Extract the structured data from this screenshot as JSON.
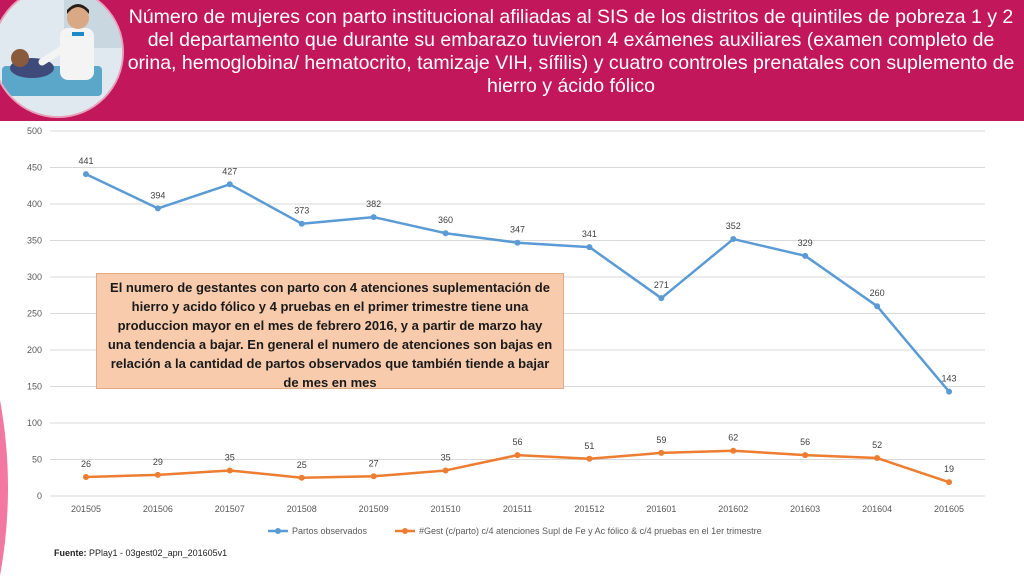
{
  "header": {
    "title": "Número de mujeres con parto institucional afiliadas al SIS de los distritos de quintiles de pobreza 1 y 2 del departamento que durante su embarazo tuvieron 4 exámenes auxiliares (examen completo de orina, hemoglobina/ hematocrito, tamizaje VIH, sífilis) y cuatro controles prenatales con suplemento de hierro y ácido fólico"
  },
  "annotation": {
    "text": "El numero de gestantes con parto con 4 atenciones suplementación de hierro y acido fólico y 4 pruebas en el primer trimestre tiene una produccion mayor en el mes de febrero 2016, y a partir de marzo hay una tendencia a bajar. En general el numero de atenciones son bajas en relación a la cantidad de partos observados que también tiende a bajar de mes en mes"
  },
  "footer": {
    "label": "Fuente:",
    "text": "PPlay1 - 03gest02_apn_201605v1"
  },
  "colors": {
    "header_bg": "#c2185b",
    "series_blue": "#5b9bd5",
    "series_orange": "#ed7d31",
    "annotation_bg": "#f8cbad"
  },
  "chart_data": {
    "type": "line",
    "title": "",
    "xlabel": "",
    "ylabel": "",
    "categories": [
      "201505",
      "201506",
      "201507",
      "201508",
      "201509",
      "201510",
      "201511",
      "201512",
      "201601",
      "201602",
      "201603",
      "201604",
      "201605"
    ],
    "ylim": [
      0,
      500
    ],
    "yticks": [
      0,
      50,
      100,
      150,
      200,
      250,
      300,
      350,
      400,
      450,
      500
    ],
    "grid": true,
    "legend_position": "bottom",
    "series": [
      {
        "name": "Partos observados",
        "color": "#5b9bd5",
        "values": [
          441,
          394,
          427,
          373,
          382,
          360,
          347,
          341,
          271,
          352,
          329,
          260,
          143
        ]
      },
      {
        "name": "#Gest (c/parto) c/4 atenciones Supl de Fe y Ac fólico & c/4 pruebas en el 1er trimestre",
        "color": "#ed7d31",
        "values": [
          26,
          29,
          35,
          25,
          27,
          35,
          56,
          51,
          59,
          62,
          56,
          52,
          19
        ]
      }
    ]
  }
}
